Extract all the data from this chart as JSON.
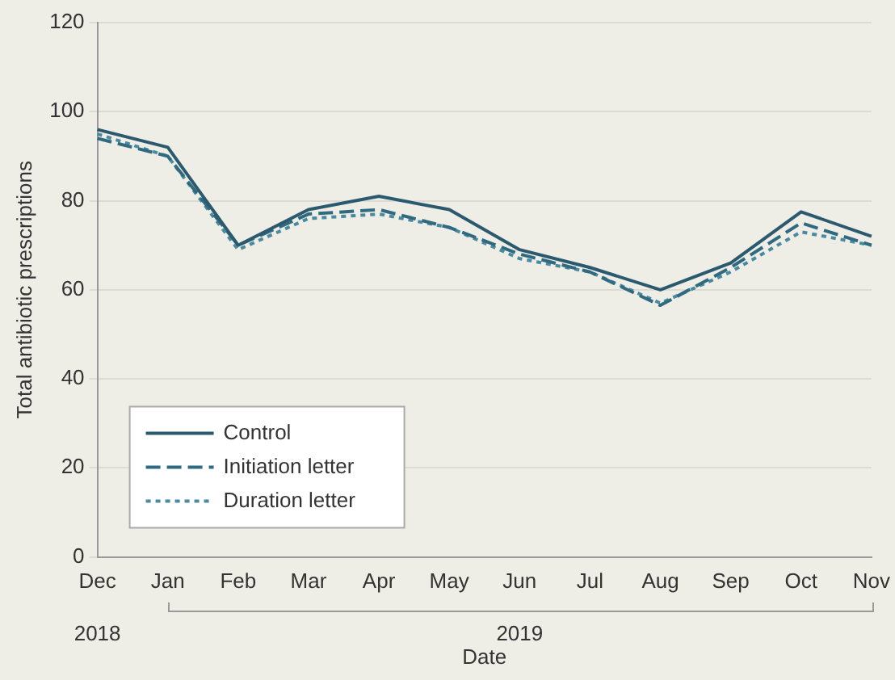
{
  "chart_data": {
    "type": "line",
    "xlabel": "Date",
    "ylabel": "Total antibiotic prescriptions",
    "categories": [
      "Dec",
      "Jan",
      "Feb",
      "Mar",
      "Apr",
      "May",
      "Jun",
      "Jul",
      "Aug",
      "Sep",
      "Oct",
      "Nov"
    ],
    "series": [
      {
        "name": "Control",
        "color": "#2b5a6e",
        "line_style": "solid",
        "values": [
          96,
          92,
          70,
          78,
          81,
          78,
          69,
          65,
          60,
          66,
          77.5,
          72
        ]
      },
      {
        "name": "Initiation letter",
        "color": "#2f6a80",
        "line_style": "dashed",
        "values": [
          94,
          90,
          70,
          77,
          78,
          74,
          68,
          64,
          56.5,
          65,
          75,
          70
        ]
      },
      {
        "name": "Duration letter",
        "color": "#4a8aa0",
        "line_style": "dotted",
        "values": [
          95,
          90,
          69,
          76,
          77,
          74,
          67,
          64,
          57,
          64,
          73,
          70
        ]
      }
    ],
    "ylim": [
      0,
      120
    ],
    "yticks": [
      0,
      20,
      40,
      60,
      80,
      100,
      120
    ],
    "grid": "y",
    "legend": "bottom left",
    "marker": "none",
    "annotations": [
      "2018",
      "2019"
    ]
  }
}
